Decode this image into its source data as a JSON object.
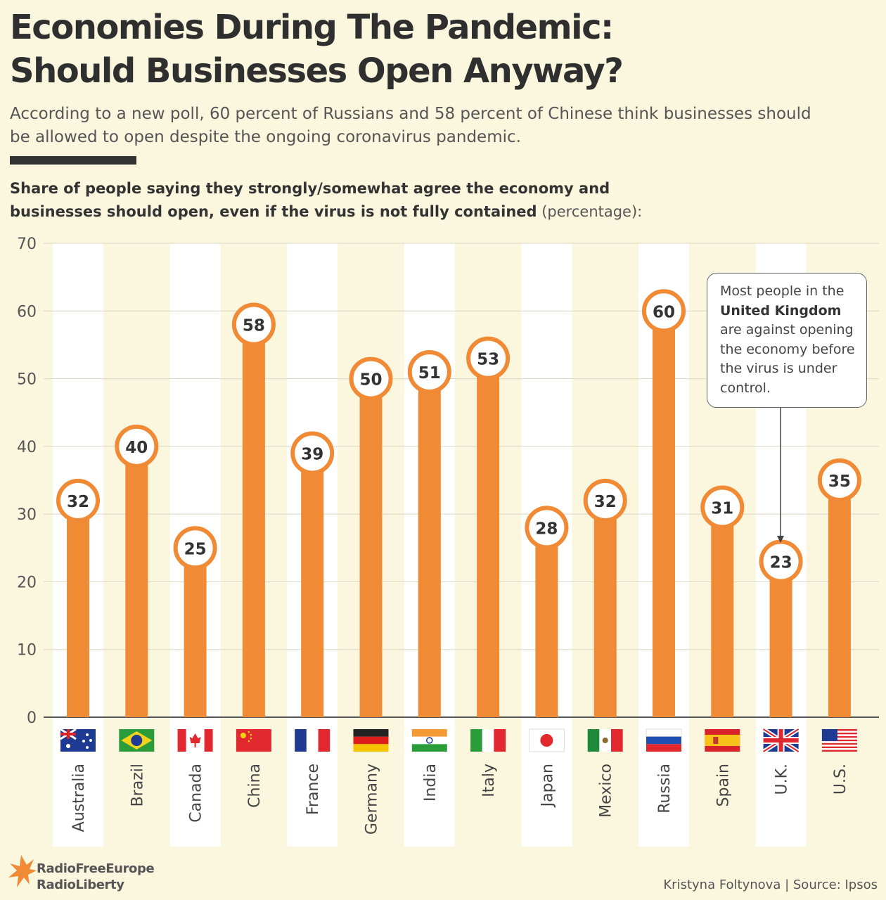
{
  "header": {
    "title_line1": "Economies During The Pandemic:",
    "title_line2": "Should Businesses Open Anyway?",
    "subtitle_line1": "According to a new poll, 60 percent of Russians and 58 percent of Chinese think businesses should",
    "subtitle_line2": "be allowed to open despite the ongoing coronavirus pandemic.",
    "desc_line1": "Share of people saying they strongly/somewhat agree the economy and",
    "desc_line2": "businesses should open, even if the virus is not fully contained",
    "desc_unit": "(percentage):"
  },
  "callout": {
    "line1": "Most people in the",
    "line2_bold": "United Kingdom",
    "line3": "are against opening",
    "line4": "the economy before",
    "line5": "the virus is under",
    "line6": "control."
  },
  "footer": {
    "logo_line1": "RadioFreeEurope",
    "logo_line2": "RadioLiberty",
    "credit": "Kristyna Foltynova | Source: Ipsos"
  },
  "colors": {
    "bar": "#f08a35",
    "background": "#fbf7df",
    "column_band": "#ffffff",
    "gridline": "#d9d6c2"
  },
  "chart_data": {
    "type": "bar",
    "categories": [
      "Australia",
      "Brazil",
      "Canada",
      "China",
      "France",
      "Germany",
      "India",
      "Italy",
      "Japan",
      "Mexico",
      "Russia",
      "Spain",
      "U.K.",
      "U.S."
    ],
    "values": [
      32,
      40,
      25,
      58,
      39,
      50,
      51,
      53,
      28,
      32,
      60,
      31,
      23,
      35
    ],
    "flags": [
      "flag-australia-icon",
      "flag-brazil-icon",
      "flag-canada-icon",
      "flag-china-icon",
      "flag-france-icon",
      "flag-germany-icon",
      "flag-india-icon",
      "flag-italy-icon",
      "flag-japan-icon",
      "flag-mexico-icon",
      "flag-russia-icon",
      "flag-spain-icon",
      "flag-uk-icon",
      "flag-us-icon"
    ],
    "yticks": [
      0,
      10,
      20,
      30,
      40,
      50,
      60,
      70
    ],
    "ylim": [
      0,
      70
    ],
    "grid": true,
    "title": "",
    "xlabel": "",
    "ylabel": ""
  }
}
